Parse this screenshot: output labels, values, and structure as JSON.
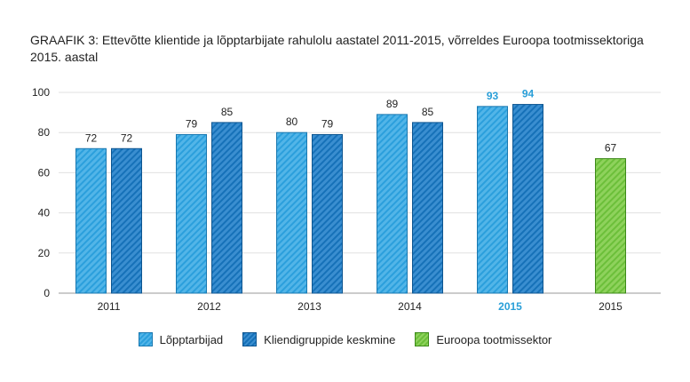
{
  "chart_data": {
    "type": "bar",
    "title": "GRAAFIK 3: Ettevõtte klientide ja lõpptarbijate rahulolu aastatel 2011-2015, võrreldes Euroopa tootmissektoriga 2015. aastal",
    "xlabel": "",
    "ylabel": "",
    "ylim": [
      0,
      100
    ],
    "yticks": [
      0,
      20,
      40,
      60,
      80,
      100
    ],
    "grid": true,
    "legend_position": "bottom",
    "categories": [
      "2011",
      "2012",
      "2013",
      "2014",
      "2015",
      "2015"
    ],
    "highlight_category_index": 4,
    "series": [
      {
        "name": "Lõpptarbijad",
        "values": [
          72,
          79,
          80,
          89,
          93,
          null
        ],
        "color": "#2b9fdc"
      },
      {
        "name": "Kliendigruppide keskmine",
        "values": [
          72,
          85,
          79,
          85,
          94,
          null
        ],
        "color": "#1671b8"
      },
      {
        "name": "Euroopa tootmissektor",
        "values": [
          null,
          null,
          null,
          null,
          null,
          67
        ],
        "color": "#6cbf3a"
      }
    ],
    "highlight_color": "#2a9fd8"
  }
}
